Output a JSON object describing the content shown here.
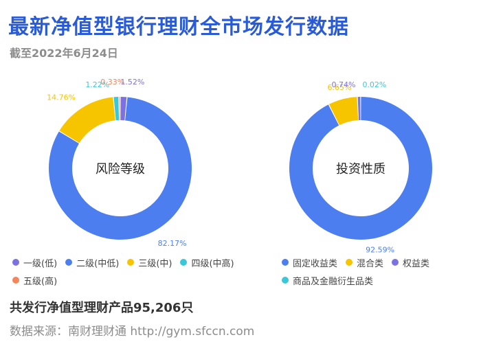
{
  "header": {
    "title": "最新净值型银行理财全市场发行数据",
    "subtitle": "截至2022年6月24日"
  },
  "footer": {
    "total": "共发行净值型理财产品95,206只",
    "source": "数据来源：南财理财通 http://gym.sfccn.com"
  },
  "chart_data": [
    {
      "type": "pie",
      "center_label": "风险等级",
      "categories": [
        "一级(低)",
        "二级(中低)",
        "三级(中)",
        "四级(中高)",
        "五级(高)"
      ],
      "values": [
        1.52,
        82.17,
        14.76,
        1.22,
        0.33
      ],
      "value_labels": [
        "1.52%",
        "82.17%",
        "14.76%",
        "1.22%",
        "0.33%"
      ],
      "colors": [
        "#7b72e0",
        "#4d7ef0",
        "#f7c400",
        "#3cc7d8",
        "#f3875b"
      ],
      "legend_rows": [
        [
          0,
          1,
          2,
          3
        ],
        [
          4
        ]
      ],
      "legend_position": "bottom"
    },
    {
      "type": "pie",
      "center_label": "投资性质",
      "categories": [
        "固定收益类",
        "混合类",
        "权益类",
        "商品及金融衍生品类"
      ],
      "values": [
        92.59,
        6.65,
        0.74,
        0.02
      ],
      "value_labels": [
        "92.59%",
        "6.65%",
        "0.74%",
        "0.02%"
      ],
      "colors": [
        "#4d7ef0",
        "#f7c400",
        "#7b72e0",
        "#3cc7d8"
      ],
      "legend_rows": [
        [
          0,
          1,
          2
        ],
        [
          3
        ]
      ],
      "legend_position": "bottom"
    }
  ]
}
